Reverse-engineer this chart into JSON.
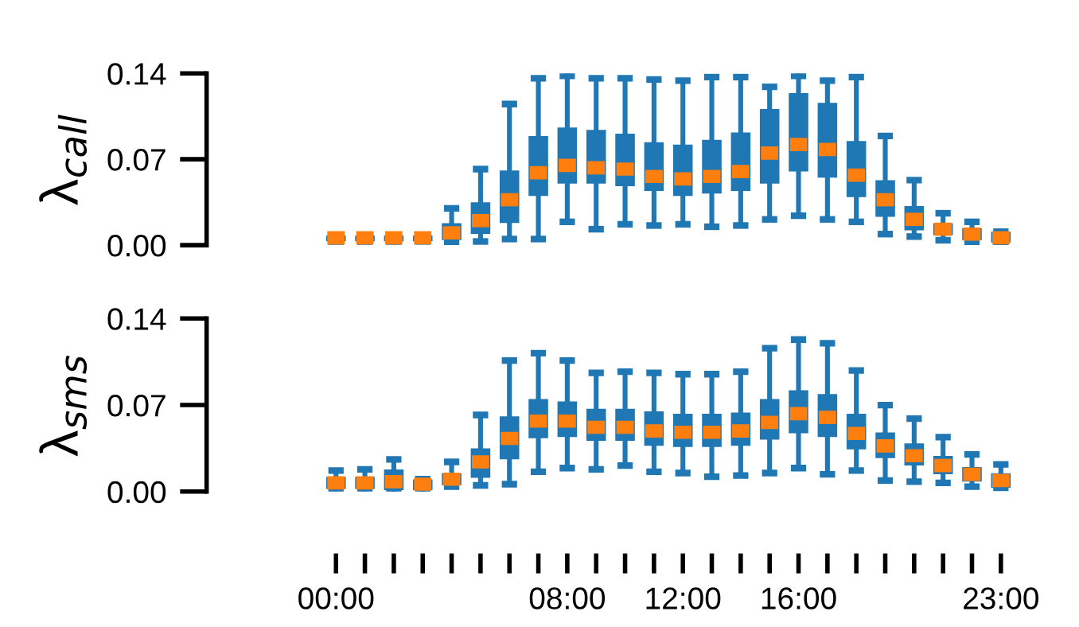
{
  "chart_data": [
    {
      "type": "box",
      "ylabel": "λ$_{call}$",
      "categories": [
        "00:00",
        null,
        null,
        null,
        null,
        null,
        null,
        null,
        "08:00",
        null,
        null,
        null,
        "12:00",
        null,
        null,
        null,
        "16:00",
        null,
        null,
        null,
        null,
        null,
        null,
        "23:00"
      ],
      "ylim": [
        0,
        0.14
      ],
      "yticks": [
        {
          "value": 0,
          "label": "0.00"
        },
        {
          "value": 0.07,
          "label": "0.07"
        },
        {
          "value": 0.14,
          "label": "0.14"
        }
      ],
      "tick_labels": "y",
      "grid": false,
      "series": [
        {
          "color": "#1f77b4",
          "boxes": [
            {
              "low": 0.003,
              "q1": 0.004,
              "median": 0.006,
              "q3": 0.007,
              "high": 0.008
            },
            {
              "low": 0.003,
              "q1": 0.004,
              "median": 0.006,
              "q3": 0.007,
              "high": 0.008
            },
            {
              "low": 0.003,
              "q1": 0.004,
              "median": 0.006,
              "q3": 0.007,
              "high": 0.008
            },
            {
              "low": 0.003,
              "q1": 0.004,
              "median": 0.006,
              "q3": 0.007,
              "high": 0.008
            },
            {
              "low": 0.002,
              "q1": 0.005,
              "median": 0.01,
              "q3": 0.017,
              "high": 0.03
            },
            {
              "low": 0.003,
              "q1": 0.01,
              "median": 0.02,
              "q3": 0.034,
              "high": 0.062
            },
            {
              "low": 0.005,
              "q1": 0.019,
              "median": 0.037,
              "q3": 0.06,
              "high": 0.115
            },
            {
              "low": 0.005,
              "q1": 0.041,
              "median": 0.059,
              "q3": 0.088,
              "high": 0.136
            },
            {
              "low": 0.019,
              "q1": 0.051,
              "median": 0.065,
              "q3": 0.095,
              "high": 0.138
            },
            {
              "low": 0.013,
              "q1": 0.051,
              "median": 0.063,
              "q3": 0.093,
              "high": 0.136
            },
            {
              "low": 0.017,
              "q1": 0.049,
              "median": 0.062,
              "q3": 0.09,
              "high": 0.136
            },
            {
              "low": 0.016,
              "q1": 0.045,
              "median": 0.056,
              "q3": 0.083,
              "high": 0.135
            },
            {
              "low": 0.017,
              "q1": 0.041,
              "median": 0.054,
              "q3": 0.081,
              "high": 0.134
            },
            {
              "low": 0.015,
              "q1": 0.043,
              "median": 0.056,
              "q3": 0.085,
              "high": 0.137
            },
            {
              "low": 0.016,
              "q1": 0.045,
              "median": 0.06,
              "q3": 0.091,
              "high": 0.137
            },
            {
              "low": 0.021,
              "q1": 0.051,
              "median": 0.075,
              "q3": 0.11,
              "high": 0.129
            },
            {
              "low": 0.024,
              "q1": 0.061,
              "median": 0.082,
              "q3": 0.123,
              "high": 0.138
            },
            {
              "low": 0.021,
              "q1": 0.056,
              "median": 0.078,
              "q3": 0.115,
              "high": 0.134
            },
            {
              "low": 0.019,
              "q1": 0.04,
              "median": 0.057,
              "q3": 0.084,
              "high": 0.137
            },
            {
              "low": 0.009,
              "q1": 0.024,
              "median": 0.037,
              "q3": 0.052,
              "high": 0.089
            },
            {
              "low": 0.007,
              "q1": 0.013,
              "median": 0.021,
              "q3": 0.031,
              "high": 0.053
            },
            {
              "low": 0.004,
              "q1": 0.009,
              "median": 0.013,
              "q3": 0.017,
              "high": 0.026
            },
            {
              "low": 0.002,
              "q1": 0.005,
              "median": 0.009,
              "q3": 0.013,
              "high": 0.019
            },
            {
              "low": 0.001,
              "q1": 0.003,
              "median": 0.006,
              "q3": 0.01,
              "high": 0.011
            }
          ]
        }
      ]
    },
    {
      "type": "box",
      "ylabel": "λ$_{sms}$",
      "categories": [
        "00:00",
        null,
        null,
        null,
        null,
        null,
        null,
        null,
        "08:00",
        null,
        null,
        null,
        "12:00",
        null,
        null,
        null,
        "16:00",
        null,
        null,
        null,
        null,
        null,
        null,
        "23:00"
      ],
      "ylim": [
        0,
        0.14
      ],
      "yticks": [
        {
          "value": 0,
          "label": "0.00"
        },
        {
          "value": 0.07,
          "label": "0.07"
        },
        {
          "value": 0.14,
          "label": "0.14"
        }
      ],
      "grid": false,
      "series": [
        {
          "color": "#1f77b4",
          "boxes": [
            {
              "low": 0.002,
              "q1": 0.003,
              "median": 0.007,
              "q3": 0.011,
              "high": 0.017
            },
            {
              "low": 0.002,
              "q1": 0.003,
              "median": 0.007,
              "q3": 0.011,
              "high": 0.018
            },
            {
              "low": 0.001,
              "q1": 0.002,
              "median": 0.008,
              "q3": 0.017,
              "high": 0.026
            },
            {
              "low": 0.001,
              "q1": 0.002,
              "median": 0.006,
              "q3": 0.009,
              "high": 0.01
            },
            {
              "low": 0.004,
              "q1": 0.006,
              "median": 0.01,
              "q3": 0.014,
              "high": 0.024
            },
            {
              "low": 0.005,
              "q1": 0.012,
              "median": 0.024,
              "q3": 0.034,
              "high": 0.062
            },
            {
              "low": 0.006,
              "q1": 0.027,
              "median": 0.043,
              "q3": 0.06,
              "high": 0.106
            },
            {
              "low": 0.016,
              "q1": 0.044,
              "median": 0.057,
              "q3": 0.074,
              "high": 0.112
            },
            {
              "low": 0.019,
              "q1": 0.045,
              "median": 0.057,
              "q3": 0.072,
              "high": 0.106
            },
            {
              "low": 0.018,
              "q1": 0.042,
              "median": 0.052,
              "q3": 0.066,
              "high": 0.096
            },
            {
              "low": 0.021,
              "q1": 0.042,
              "median": 0.052,
              "q3": 0.066,
              "high": 0.097
            },
            {
              "low": 0.016,
              "q1": 0.038,
              "median": 0.049,
              "q3": 0.064,
              "high": 0.096
            },
            {
              "low": 0.015,
              "q1": 0.037,
              "median": 0.048,
              "q3": 0.062,
              "high": 0.095
            },
            {
              "low": 0.012,
              "q1": 0.037,
              "median": 0.048,
              "q3": 0.062,
              "high": 0.095
            },
            {
              "low": 0.013,
              "q1": 0.038,
              "median": 0.049,
              "q3": 0.063,
              "high": 0.097
            },
            {
              "low": 0.015,
              "q1": 0.043,
              "median": 0.056,
              "q3": 0.074,
              "high": 0.116
            },
            {
              "low": 0.019,
              "q1": 0.048,
              "median": 0.063,
              "q3": 0.081,
              "high": 0.123
            },
            {
              "low": 0.014,
              "q1": 0.045,
              "median": 0.06,
              "q3": 0.078,
              "high": 0.12
            },
            {
              "low": 0.017,
              "q1": 0.035,
              "median": 0.047,
              "q3": 0.062,
              "high": 0.098
            },
            {
              "low": 0.009,
              "q1": 0.028,
              "median": 0.037,
              "q3": 0.047,
              "high": 0.07
            },
            {
              "low": 0.008,
              "q1": 0.022,
              "median": 0.029,
              "q3": 0.038,
              "high": 0.059
            },
            {
              "low": 0.007,
              "q1": 0.015,
              "median": 0.021,
              "q3": 0.028,
              "high": 0.044
            },
            {
              "low": 0.004,
              "q1": 0.009,
              "median": 0.014,
              "q3": 0.019,
              "high": 0.03
            },
            {
              "low": 0.003,
              "q1": 0.004,
              "median": 0.009,
              "q3": 0.014,
              "high": 0.022
            }
          ]
        }
      ]
    }
  ]
}
